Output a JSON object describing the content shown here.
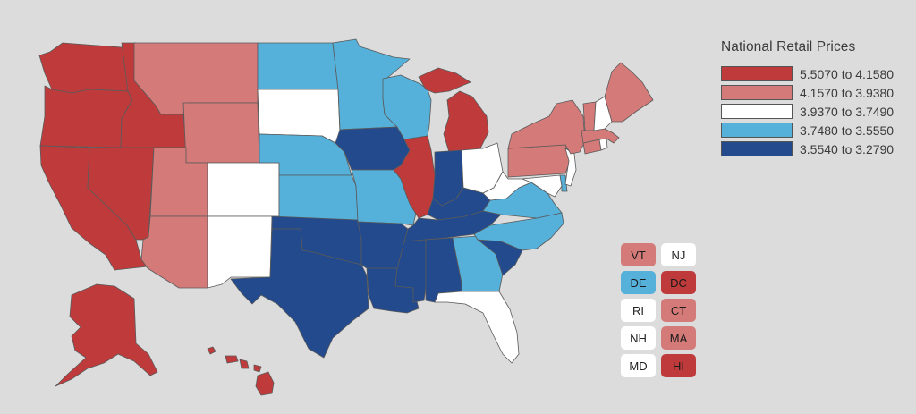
{
  "legend": {
    "title": "National Retail Prices",
    "bins": [
      {
        "label": "5.5070 to 4.1580",
        "color": "#bf3b3b"
      },
      {
        "label": "4.1570 to 3.9380",
        "color": "#d47a78"
      },
      {
        "label": "3.9370 to 3.7490",
        "color": "#ffffff"
      },
      {
        "label": "3.7480 to 3.5550",
        "color": "#55b0da"
      },
      {
        "label": "3.5540 to 3.2790",
        "color": "#224a8c"
      }
    ]
  },
  "small_states": [
    {
      "abbr": "VT",
      "bin": 1
    },
    {
      "abbr": "NJ",
      "bin": 2
    },
    {
      "abbr": "DE",
      "bin": 3
    },
    {
      "abbr": "DC",
      "bin": 0
    },
    {
      "abbr": "RI",
      "bin": 2
    },
    {
      "abbr": "CT",
      "bin": 1
    },
    {
      "abbr": "NH",
      "bin": 2
    },
    {
      "abbr": "MA",
      "bin": 1
    },
    {
      "abbr": "MD",
      "bin": 2
    },
    {
      "abbr": "HI",
      "bin": 0
    }
  ],
  "map_states": {
    "WA": 0,
    "OR": 0,
    "CA": 0,
    "NV": 0,
    "ID": 0,
    "AK": 0,
    "HI": 0,
    "IL": 0,
    "MI": 0,
    "MT": 1,
    "WY": 1,
    "UT": 1,
    "AZ": 1,
    "NY": 1,
    "PA": 1,
    "ME": 1,
    "VT": 1,
    "MA": 1,
    "CT": 1,
    "CO": 2,
    "NM": 2,
    "SD": 2,
    "OH": 2,
    "WV": 2,
    "FL": 2,
    "NH": 2,
    "NJ": 2,
    "RI": 2,
    "MD": 2,
    "ND": 3,
    "MN": 3,
    "WI": 3,
    "NE": 3,
    "KS": 3,
    "MO": 3,
    "VA": 3,
    "NC": 3,
    "GA": 3,
    "DE": 3,
    "IA": 4,
    "TX": 4,
    "OK": 4,
    "AR": 4,
    "LA": 4,
    "MS": 4,
    "AL": 4,
    "TN": 4,
    "KY": 4,
    "IN": 4,
    "SC": 4
  }
}
